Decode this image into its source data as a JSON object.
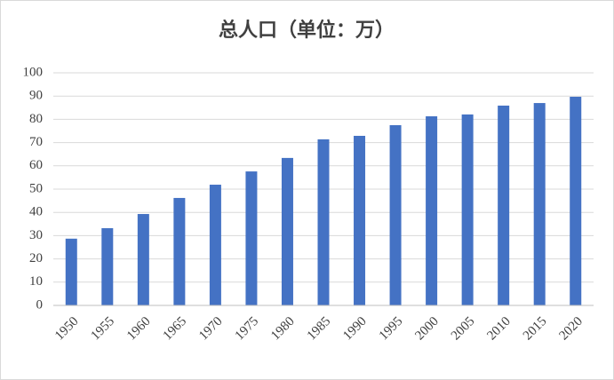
{
  "chart_data": {
    "type": "bar",
    "title": "总人口（单位：万）",
    "categories": [
      "1950",
      "1955",
      "1960",
      "1965",
      "1970",
      "1975",
      "1980",
      "1985",
      "1990",
      "1995",
      "2000",
      "2005",
      "2010",
      "2015",
      "2020"
    ],
    "values": [
      28.7,
      33.2,
      39.3,
      46.2,
      51.9,
      57.6,
      63.4,
      71.4,
      72.9,
      77.5,
      81.3,
      82.1,
      85.9,
      87.0,
      89.7
    ],
    "color": "#4472c4",
    "ylim": [
      0,
      100
    ],
    "yticks": [
      0,
      10,
      20,
      30,
      40,
      50,
      60,
      70,
      80,
      90,
      100
    ],
    "grid": true
  }
}
